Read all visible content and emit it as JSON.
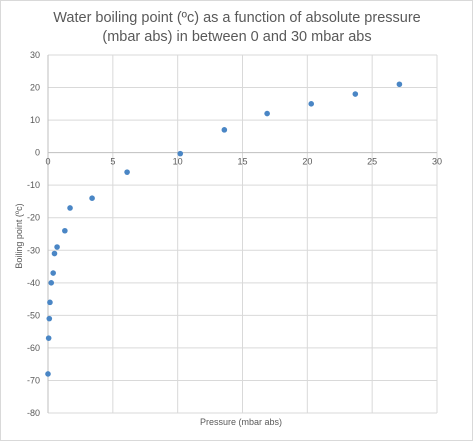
{
  "chart_data": {
    "type": "scatter",
    "title_lines": [
      "Water boiling point (ºc) as a function of absolute pressure",
      "(mbar abs) in between 0 and 30 mbar abs"
    ],
    "xlabel": "Pressure (mbar abs)",
    "ylabel": "Boiling point (ºc)",
    "xlim": [
      0,
      30
    ],
    "ylim": [
      -80,
      30
    ],
    "xticks": [
      0,
      5,
      10,
      15,
      20,
      25,
      30
    ],
    "yticks": [
      30,
      20,
      10,
      0,
      -10,
      -20,
      -30,
      -40,
      -50,
      -60,
      -70,
      -80
    ],
    "grid": true,
    "legend": "none",
    "marker_color": "#4a86c5",
    "points": [
      {
        "x": 0.0,
        "y": -68
      },
      {
        "x": 0.05,
        "y": -57
      },
      {
        "x": 0.1,
        "y": -51
      },
      {
        "x": 0.15,
        "y": -46
      },
      {
        "x": 0.25,
        "y": -40
      },
      {
        "x": 0.4,
        "y": -37
      },
      {
        "x": 0.5,
        "y": -31
      },
      {
        "x": 0.7,
        "y": -29
      },
      {
        "x": 1.3,
        "y": -24
      },
      {
        "x": 1.7,
        "y": -17
      },
      {
        "x": 3.4,
        "y": -14
      },
      {
        "x": 6.1,
        "y": -6
      },
      {
        "x": 10.2,
        "y": -0.3
      },
      {
        "x": 13.6,
        "y": 7
      },
      {
        "x": 16.9,
        "y": 12
      },
      {
        "x": 20.3,
        "y": 15
      },
      {
        "x": 23.7,
        "y": 18
      },
      {
        "x": 27.1,
        "y": 21
      }
    ]
  }
}
